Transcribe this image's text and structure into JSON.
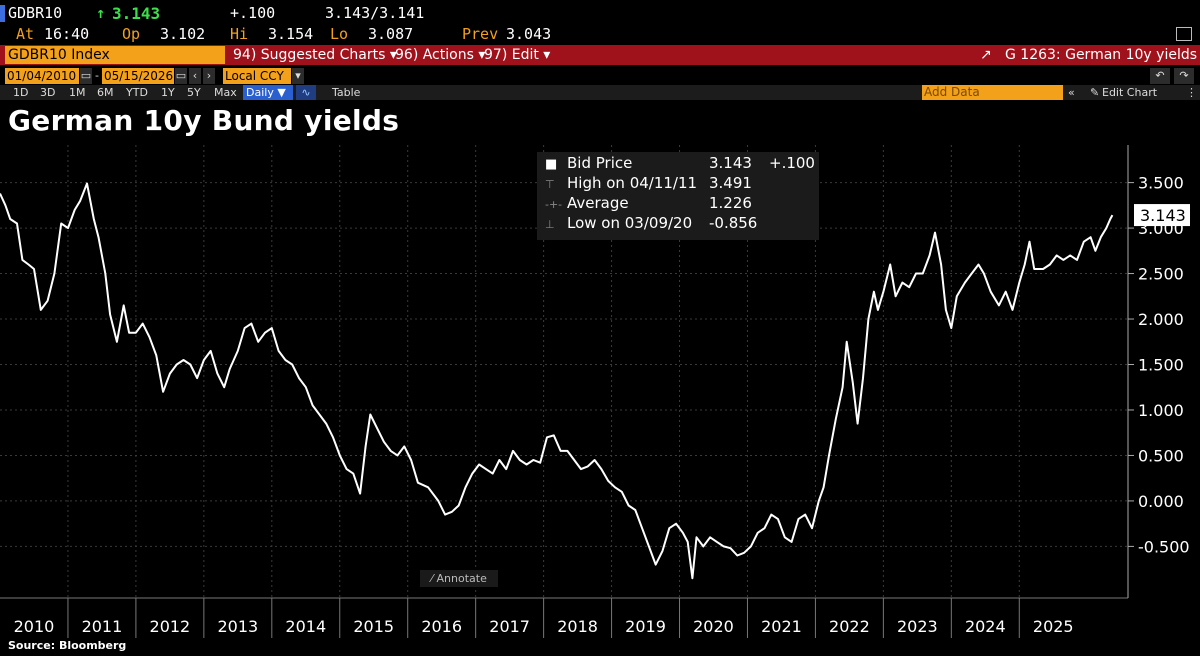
{
  "header": {
    "ticker": "GDBR10",
    "arrow": "↑",
    "last": "3.143",
    "change": "+.100",
    "bid_ask": "3.143/3.141",
    "at_label": "At",
    "at_time": "16:40",
    "op_label": "Op",
    "op": "3.102",
    "hi_label": "Hi",
    "hi": "3.154",
    "lo_label": "Lo",
    "lo": "3.087",
    "prev_label": "Prev",
    "prev": "3.043"
  },
  "menubar": {
    "index_name": "GDBR10 Index",
    "suggested": "94) Suggested Charts ▾",
    "actions": "96) Actions ▾",
    "edit": "97) Edit ▾",
    "chart_id": "G 1263: German 10y yields"
  },
  "toolbar": {
    "start_date": "01/04/2010",
    "end_date": "05/15/2026",
    "currency": "Local CCY",
    "add_data_placeholder": "Add Data",
    "edit_chart": "Edit Chart"
  },
  "periods": [
    "1D",
    "3D",
    "1M",
    "6M",
    "YTD",
    "1Y",
    "5Y",
    "Max"
  ],
  "frequency": "Daily ▼",
  "table_label": "Table",
  "title": "German 10y Bund yields",
  "source": "Source: Bloomberg",
  "legend": {
    "bid_label": "Bid Price",
    "bid_value": "3.143",
    "bid_change": "+.100",
    "high_label": "High on 04/11/11",
    "high_value": "3.491",
    "avg_label": "Average",
    "avg_value": "1.226",
    "low_label": "Low on 03/09/20",
    "low_value": "-0.856"
  },
  "annotate_label": "Annotate",
  "last_value_tag": "3.143",
  "colors": {
    "accent": "#f3a01a",
    "menubar": "#a0121b",
    "up": "#3ce04a",
    "line": "#ffffff"
  },
  "chart_data": {
    "type": "line",
    "title": "German 10y Bund yields",
    "xlabel": "",
    "ylabel": "",
    "ylim": [
      -0.85,
      3.65
    ],
    "yticks": [
      3.5,
      3.0,
      2.5,
      2.0,
      1.5,
      1.0,
      0.5,
      0.0,
      -0.5
    ],
    "ytick_labels": [
      "3.500",
      "3.000",
      "2.500",
      "2.000",
      "1.500",
      "1.000",
      "0.500",
      "0.000",
      "-0.500"
    ],
    "xtick_labels": [
      "2010",
      "2011",
      "2012",
      "2013",
      "2014",
      "2015",
      "2016",
      "2017",
      "2018",
      "2019",
      "2020",
      "2021",
      "2022",
      "2023",
      "2024",
      "2025"
    ],
    "grid": true,
    "series": [
      {
        "values": [
          {
            "x": 2010.0,
            "y": 3.38
          },
          {
            "x": 2010.08,
            "y": 3.25
          },
          {
            "x": 2010.15,
            "y": 3.1
          },
          {
            "x": 2010.25,
            "y": 3.05
          },
          {
            "x": 2010.33,
            "y": 2.65
          },
          {
            "x": 2010.42,
            "y": 2.6
          },
          {
            "x": 2010.5,
            "y": 2.55
          },
          {
            "x": 2010.6,
            "y": 2.1
          },
          {
            "x": 2010.7,
            "y": 2.2
          },
          {
            "x": 2010.8,
            "y": 2.5
          },
          {
            "x": 2010.9,
            "y": 3.05
          },
          {
            "x": 2011.0,
            "y": 3.0
          },
          {
            "x": 2011.1,
            "y": 3.2
          },
          {
            "x": 2011.18,
            "y": 3.3
          },
          {
            "x": 2011.28,
            "y": 3.49
          },
          {
            "x": 2011.38,
            "y": 3.1
          },
          {
            "x": 2011.45,
            "y": 2.9
          },
          {
            "x": 2011.55,
            "y": 2.5
          },
          {
            "x": 2011.62,
            "y": 2.05
          },
          {
            "x": 2011.72,
            "y": 1.75
          },
          {
            "x": 2011.82,
            "y": 2.15
          },
          {
            "x": 2011.9,
            "y": 1.85
          },
          {
            "x": 2012.0,
            "y": 1.85
          },
          {
            "x": 2012.1,
            "y": 1.95
          },
          {
            "x": 2012.2,
            "y": 1.8
          },
          {
            "x": 2012.3,
            "y": 1.6
          },
          {
            "x": 2012.4,
            "y": 1.2
          },
          {
            "x": 2012.5,
            "y": 1.4
          },
          {
            "x": 2012.6,
            "y": 1.5
          },
          {
            "x": 2012.7,
            "y": 1.55
          },
          {
            "x": 2012.8,
            "y": 1.5
          },
          {
            "x": 2012.9,
            "y": 1.35
          },
          {
            "x": 2013.0,
            "y": 1.55
          },
          {
            "x": 2013.1,
            "y": 1.65
          },
          {
            "x": 2013.2,
            "y": 1.4
          },
          {
            "x": 2013.3,
            "y": 1.25
          },
          {
            "x": 2013.38,
            "y": 1.45
          },
          {
            "x": 2013.5,
            "y": 1.65
          },
          {
            "x": 2013.6,
            "y": 1.9
          },
          {
            "x": 2013.7,
            "y": 1.95
          },
          {
            "x": 2013.8,
            "y": 1.75
          },
          {
            "x": 2013.9,
            "y": 1.85
          },
          {
            "x": 2014.0,
            "y": 1.9
          },
          {
            "x": 2014.1,
            "y": 1.65
          },
          {
            "x": 2014.2,
            "y": 1.55
          },
          {
            "x": 2014.3,
            "y": 1.5
          },
          {
            "x": 2014.4,
            "y": 1.35
          },
          {
            "x": 2014.5,
            "y": 1.25
          },
          {
            "x": 2014.6,
            "y": 1.05
          },
          {
            "x": 2014.7,
            "y": 0.95
          },
          {
            "x": 2014.8,
            "y": 0.85
          },
          {
            "x": 2014.9,
            "y": 0.7
          },
          {
            "x": 2015.0,
            "y": 0.5
          },
          {
            "x": 2015.1,
            "y": 0.35
          },
          {
            "x": 2015.2,
            "y": 0.3
          },
          {
            "x": 2015.3,
            "y": 0.08
          },
          {
            "x": 2015.38,
            "y": 0.6
          },
          {
            "x": 2015.45,
            "y": 0.95
          },
          {
            "x": 2015.55,
            "y": 0.8
          },
          {
            "x": 2015.65,
            "y": 0.65
          },
          {
            "x": 2015.75,
            "y": 0.55
          },
          {
            "x": 2015.85,
            "y": 0.5
          },
          {
            "x": 2015.95,
            "y": 0.6
          },
          {
            "x": 2016.05,
            "y": 0.45
          },
          {
            "x": 2016.15,
            "y": 0.2
          },
          {
            "x": 2016.3,
            "y": 0.15
          },
          {
            "x": 2016.45,
            "y": 0.0
          },
          {
            "x": 2016.55,
            "y": -0.15
          },
          {
            "x": 2016.65,
            "y": -0.12
          },
          {
            "x": 2016.75,
            "y": -0.05
          },
          {
            "x": 2016.85,
            "y": 0.15
          },
          {
            "x": 2016.95,
            "y": 0.3
          },
          {
            "x": 2017.05,
            "y": 0.4
          },
          {
            "x": 2017.15,
            "y": 0.35
          },
          {
            "x": 2017.25,
            "y": 0.3
          },
          {
            "x": 2017.35,
            "y": 0.45
          },
          {
            "x": 2017.45,
            "y": 0.35
          },
          {
            "x": 2017.55,
            "y": 0.55
          },
          {
            "x": 2017.65,
            "y": 0.45
          },
          {
            "x": 2017.75,
            "y": 0.4
          },
          {
            "x": 2017.85,
            "y": 0.45
          },
          {
            "x": 2017.95,
            "y": 0.42
          },
          {
            "x": 2018.05,
            "y": 0.7
          },
          {
            "x": 2018.15,
            "y": 0.72
          },
          {
            "x": 2018.25,
            "y": 0.55
          },
          {
            "x": 2018.35,
            "y": 0.55
          },
          {
            "x": 2018.45,
            "y": 0.45
          },
          {
            "x": 2018.55,
            "y": 0.35
          },
          {
            "x": 2018.65,
            "y": 0.38
          },
          {
            "x": 2018.75,
            "y": 0.45
          },
          {
            "x": 2018.85,
            "y": 0.35
          },
          {
            "x": 2018.95,
            "y": 0.22
          },
          {
            "x": 2019.05,
            "y": 0.15
          },
          {
            "x": 2019.15,
            "y": 0.1
          },
          {
            "x": 2019.25,
            "y": -0.05
          },
          {
            "x": 2019.35,
            "y": -0.1
          },
          {
            "x": 2019.45,
            "y": -0.3
          },
          {
            "x": 2019.55,
            "y": -0.5
          },
          {
            "x": 2019.65,
            "y": -0.7
          },
          {
            "x": 2019.75,
            "y": -0.55
          },
          {
            "x": 2019.85,
            "y": -0.3
          },
          {
            "x": 2019.95,
            "y": -0.25
          },
          {
            "x": 2020.05,
            "y": -0.35
          },
          {
            "x": 2020.12,
            "y": -0.45
          },
          {
            "x": 2020.19,
            "y": -0.85
          },
          {
            "x": 2020.25,
            "y": -0.4
          },
          {
            "x": 2020.35,
            "y": -0.5
          },
          {
            "x": 2020.45,
            "y": -0.4
          },
          {
            "x": 2020.55,
            "y": -0.45
          },
          {
            "x": 2020.65,
            "y": -0.5
          },
          {
            "x": 2020.75,
            "y": -0.52
          },
          {
            "x": 2020.85,
            "y": -0.6
          },
          {
            "x": 2020.95,
            "y": -0.57
          },
          {
            "x": 2021.05,
            "y": -0.5
          },
          {
            "x": 2021.15,
            "y": -0.35
          },
          {
            "x": 2021.25,
            "y": -0.3
          },
          {
            "x": 2021.35,
            "y": -0.15
          },
          {
            "x": 2021.45,
            "y": -0.2
          },
          {
            "x": 2021.55,
            "y": -0.4
          },
          {
            "x": 2021.65,
            "y": -0.45
          },
          {
            "x": 2021.75,
            "y": -0.2
          },
          {
            "x": 2021.85,
            "y": -0.15
          },
          {
            "x": 2021.95,
            "y": -0.3
          },
          {
            "x": 2022.05,
            "y": 0.0
          },
          {
            "x": 2022.12,
            "y": 0.15
          },
          {
            "x": 2022.2,
            "y": 0.5
          },
          {
            "x": 2022.3,
            "y": 0.9
          },
          {
            "x": 2022.4,
            "y": 1.25
          },
          {
            "x": 2022.46,
            "y": 1.75
          },
          {
            "x": 2022.55,
            "y": 1.3
          },
          {
            "x": 2022.62,
            "y": 0.85
          },
          {
            "x": 2022.7,
            "y": 1.35
          },
          {
            "x": 2022.78,
            "y": 2.0
          },
          {
            "x": 2022.86,
            "y": 2.3
          },
          {
            "x": 2022.92,
            "y": 2.1
          },
          {
            "x": 2023.0,
            "y": 2.3
          },
          {
            "x": 2023.1,
            "y": 2.6
          },
          {
            "x": 2023.18,
            "y": 2.25
          },
          {
            "x": 2023.28,
            "y": 2.4
          },
          {
            "x": 2023.38,
            "y": 2.35
          },
          {
            "x": 2023.48,
            "y": 2.5
          },
          {
            "x": 2023.58,
            "y": 2.5
          },
          {
            "x": 2023.68,
            "y": 2.7
          },
          {
            "x": 2023.76,
            "y": 2.95
          },
          {
            "x": 2023.85,
            "y": 2.6
          },
          {
            "x": 2023.92,
            "y": 2.1
          },
          {
            "x": 2024.0,
            "y": 1.9
          },
          {
            "x": 2024.08,
            "y": 2.25
          },
          {
            "x": 2024.2,
            "y": 2.4
          },
          {
            "x": 2024.3,
            "y": 2.5
          },
          {
            "x": 2024.4,
            "y": 2.6
          },
          {
            "x": 2024.48,
            "y": 2.5
          },
          {
            "x": 2024.58,
            "y": 2.3
          },
          {
            "x": 2024.7,
            "y": 2.15
          },
          {
            "x": 2024.8,
            "y": 2.3
          },
          {
            "x": 2024.9,
            "y": 2.1
          },
          {
            "x": 2025.0,
            "y": 2.4
          },
          {
            "x": 2025.08,
            "y": 2.6
          },
          {
            "x": 2025.15,
            "y": 2.85
          },
          {
            "x": 2025.22,
            "y": 2.55
          },
          {
            "x": 2025.35,
            "y": 2.55
          },
          {
            "x": 2025.45,
            "y": 2.6
          },
          {
            "x": 2025.55,
            "y": 2.7
          },
          {
            "x": 2025.65,
            "y": 2.65
          },
          {
            "x": 2025.75,
            "y": 2.7
          },
          {
            "x": 2025.85,
            "y": 2.65
          },
          {
            "x": 2025.95,
            "y": 2.85
          },
          {
            "x": 2026.05,
            "y": 2.9
          },
          {
            "x": 2026.12,
            "y": 2.75
          },
          {
            "x": 2026.2,
            "y": 2.9
          },
          {
            "x": 2026.28,
            "y": 3.0
          },
          {
            "x": 2026.34,
            "y": 3.1
          },
          {
            "x": 2026.37,
            "y": 3.143
          }
        ]
      }
    ]
  }
}
